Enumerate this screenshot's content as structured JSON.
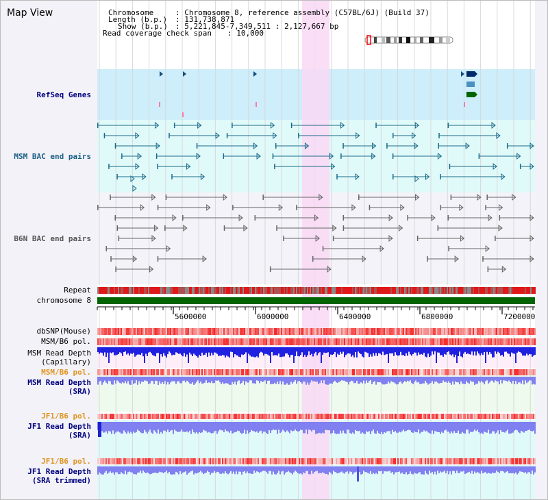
{
  "page": {
    "title": "Map View"
  },
  "info": {
    "chromosome_key": "Chromosome",
    "chromosome_val": ": Chromosome 8, reference assembly (C57BL/6J) (Build 37)",
    "length_key": "Length (b.p.)",
    "length_val": ": 131,738,871",
    "show_key": "Show (b.p.)",
    "show_val": ": 5,221,845-7,349,511 : 2,127,667 bp",
    "span_key": "Read coverage check span",
    "span_val": ": 10,000"
  },
  "tracks": {
    "refseq": "RefSeq Genes",
    "msm_bac": "MSM BAC end pairs",
    "b6n_bac": "B6N BAC end pairs",
    "repeat": "Repeat",
    "chromosome": "chromosome 8",
    "dbsnp": "dbSNP(Mouse)",
    "msm_b6_pol_1": "MSM/B6 pol.",
    "msm_depth_cap_1": "MSM Read Depth",
    "msm_depth_cap_2": "(Capillary)",
    "msm_b6_pol_2": "MSM/B6 pol.",
    "msm_depth_sra_1": "MSM Read Depth",
    "msm_depth_sra_2": "(SRA)",
    "jf1_b6_pol_1": "JF1/B6 pol.",
    "jf1_depth_sra_1": "JF1 Read Depth",
    "jf1_depth_sra_2": "(SRA)",
    "jf1_b6_pol_2": "JF1/B6 pol.",
    "jf1_depth_trim_1": "JF1 Read Depth",
    "jf1_depth_trim_2": "(SRA trimmed)"
  },
  "axis": {
    "ticks": [
      "5600000",
      "6000000",
      "6400000",
      "6800000",
      "7200000"
    ]
  },
  "colors": {
    "highlight": "#f8d8f4",
    "refseq_bg": "#cdeefa",
    "msm_bg": "#e0fafa",
    "b6n_bg": "#f3f3f9",
    "chromosome": "#006400",
    "depth_blue": "#2020e0",
    "sra_blue": "#8080f0"
  }
}
